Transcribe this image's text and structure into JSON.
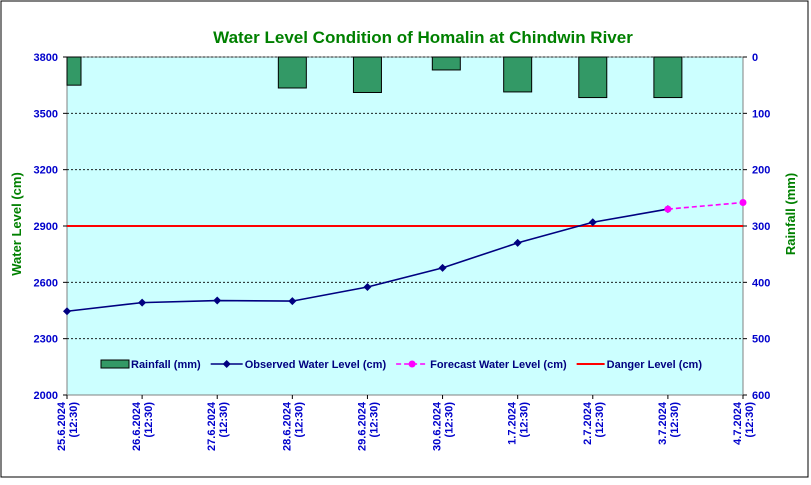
{
  "chart_data": {
    "type": "line",
    "title": "Water Level Condition of Homalin at Chindwin River",
    "ylabel_left": "Water Level (cm)",
    "ylabel_right": "Rainfall (mm)",
    "categories": [
      [
        "25.6.2024",
        "(12:30)"
      ],
      [
        "26.6.2024",
        "(12:30)"
      ],
      [
        "27.6.2024",
        "(12:30)"
      ],
      [
        "28.6.2024",
        "(12:30)"
      ],
      [
        "29.6.2024",
        "(12:30)"
      ],
      [
        "30.6.2024",
        "(12:30)"
      ],
      [
        "1.7.2024",
        "(12:30)"
      ],
      [
        "2.7.2024",
        "(12:30)"
      ],
      [
        "3.7.2024",
        "(12:30)"
      ],
      [
        "4.7.2024",
        "(12:30)"
      ]
    ],
    "ylim_left": [
      2000,
      3800
    ],
    "yticks_left": [
      2000,
      2300,
      2600,
      2900,
      3200,
      3500,
      3800
    ],
    "ylim_right": [
      600,
      0
    ],
    "yticks_right": [
      0,
      100,
      200,
      300,
      400,
      500,
      600
    ],
    "grid": true,
    "legend_position": "bottom-inside",
    "series": [
      {
        "name": "Rainfall (mm)",
        "kind": "bar",
        "axis": "right",
        "color": "#339966",
        "values": [
          50,
          0,
          0,
          55,
          63,
          0,
          62,
          72,
          72,
          0
        ],
        "offset_values": [
          {
            "x_index": 5.05,
            "value": 23
          }
        ]
      },
      {
        "name": "Observed Water Level (cm)",
        "kind": "line",
        "axis": "left",
        "color": "#000080",
        "marker": "diamond",
        "values": [
          2446,
          2492,
          2503,
          2500,
          2575,
          2677,
          2810,
          2920,
          2990,
          null
        ]
      },
      {
        "name": "Forecast Water Level (cm)",
        "kind": "line",
        "axis": "left",
        "color": "#ff00ff",
        "dash": true,
        "marker": "circle",
        "values": [
          null,
          null,
          null,
          null,
          null,
          null,
          null,
          null,
          2990,
          3025
        ]
      },
      {
        "name": "Danger Level (cm)",
        "kind": "hline",
        "axis": "left",
        "color": "#ff0000",
        "value": 2900
      }
    ]
  },
  "colors": {
    "plot_bg": "#ccffff",
    "title": "#008000",
    "axis_label": "#008000",
    "tick_label": "#0000cc",
    "legend_text": "#000080"
  }
}
